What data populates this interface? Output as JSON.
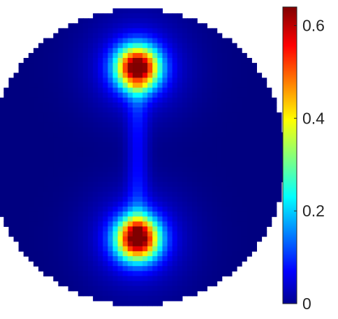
{
  "chart_data": {
    "type": "heatmap",
    "title": "",
    "xlabel": "",
    "ylabel": "",
    "grid": false,
    "legend": "none",
    "domain_shape": "circle",
    "colormap": "jet",
    "colorbar": {
      "position": "right",
      "min": 0,
      "max": 0.64,
      "ticks": [
        0,
        0.2,
        0.4,
        0.6
      ],
      "tick_labels": [
        "0",
        "0.2",
        "0.4",
        "0.6"
      ]
    },
    "background_value": 0.0,
    "hot_spots": [
      {
        "x": 0.0,
        "y": 0.6,
        "peak": 0.64,
        "spread": 0.1
      },
      {
        "x": 0.0,
        "y": -0.55,
        "peak": 0.64,
        "spread": 0.1
      }
    ],
    "colors": {
      "low": "#0000ff",
      "mid_low": "#00ffff",
      "mid": "#ffff00",
      "mid_high": "#ff8000",
      "high": "#ff0000"
    }
  }
}
